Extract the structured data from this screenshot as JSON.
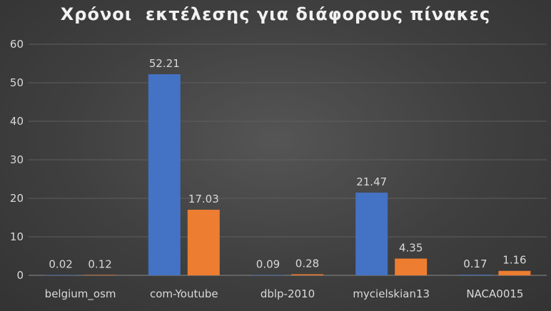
{
  "chart_data": {
    "type": "bar",
    "title": "Χρόνοι  εκτέλεσης για διάφορους πίνακες",
    "categories": [
      "belgium_osm",
      "com-Youtube",
      "dblp-2010",
      "mycielskian13",
      "NACA0015"
    ],
    "series": [
      {
        "values": [
          0.02,
          52.21,
          0.09,
          21.47,
          0.17
        ],
        "color": "#4472c4"
      },
      {
        "values": [
          0.12,
          17.03,
          0.28,
          4.35,
          1.16
        ],
        "color": "#ed7d31"
      }
    ],
    "ylim": [
      0,
      60
    ],
    "yticks": [
      0,
      10,
      20,
      30,
      40,
      50,
      60
    ],
    "value_labels": [
      [
        "0.02",
        "52.21",
        "0.09",
        "21.47",
        "0.17"
      ],
      [
        "0.12",
        "17.03",
        "0.28",
        "4.35",
        "1.16"
      ]
    ],
    "grid": true,
    "legend": "none"
  }
}
